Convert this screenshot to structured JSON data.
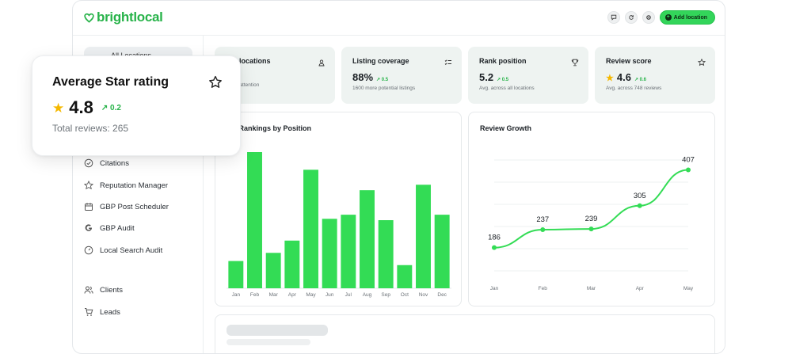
{
  "app": {
    "logo_text": "brightlocal",
    "add_location_label": "Add location",
    "brand_color": "#33d55a"
  },
  "sidebar": {
    "active_item": "All Locations",
    "items": [
      {
        "label": "Citations",
        "icon": "check-circle-icon"
      },
      {
        "label": "Reputation Manager",
        "icon": "star-icon"
      },
      {
        "label": "GBP Post Scheduler",
        "icon": "calendar-icon"
      },
      {
        "label": "GBP Audit",
        "icon": "google-g-icon"
      },
      {
        "label": "Local Search Audit",
        "icon": "gauge-icon"
      },
      {
        "label": "Clients",
        "icon": "users-icon"
      },
      {
        "label": "Leads",
        "icon": "cart-icon"
      }
    ]
  },
  "kpis": [
    {
      "title": "l locations",
      "value": "",
      "trend": "",
      "sub": "d attention",
      "icon": "person-pin-icon"
    },
    {
      "title": "Listing coverage",
      "value": "88%",
      "trend": "0.5",
      "sub": "1600 more potential listings",
      "icon": "list-check-icon"
    },
    {
      "title": "Rank position",
      "value": "5.2",
      "trend": "0.5",
      "sub": "Avg. across all locations",
      "icon": "trophy-icon"
    },
    {
      "title": "Review score",
      "value": "4.6",
      "trend": "0.6",
      "sub": "Avg. across 748 reviews",
      "icon": "star-outline-icon"
    }
  ],
  "float_card": {
    "title": "Average Star rating",
    "value": "4.8",
    "trend": "0.2",
    "subtitle": "Total reviews: 265"
  },
  "chart_data": [
    {
      "type": "bar",
      "title": "gle Rankings by Position",
      "categories": [
        "Jan",
        "Feb",
        "Mar",
        "Apr",
        "May",
        "Jun",
        "Jul",
        "Aug",
        "Sep",
        "Oct",
        "Nov",
        "Dec"
      ],
      "values": [
        20,
        100,
        26,
        35,
        87,
        51,
        54,
        72,
        50,
        17,
        76,
        54
      ],
      "ylim": [
        0,
        100
      ],
      "color": "#33dc55"
    },
    {
      "type": "line",
      "title": "Review Growth",
      "categories": [
        "Jan",
        "Feb",
        "Mar",
        "Apr",
        "May"
      ],
      "values": [
        186,
        237,
        239,
        305,
        407
      ],
      "ylim": [
        120,
        480
      ],
      "color": "#33dc55"
    }
  ]
}
